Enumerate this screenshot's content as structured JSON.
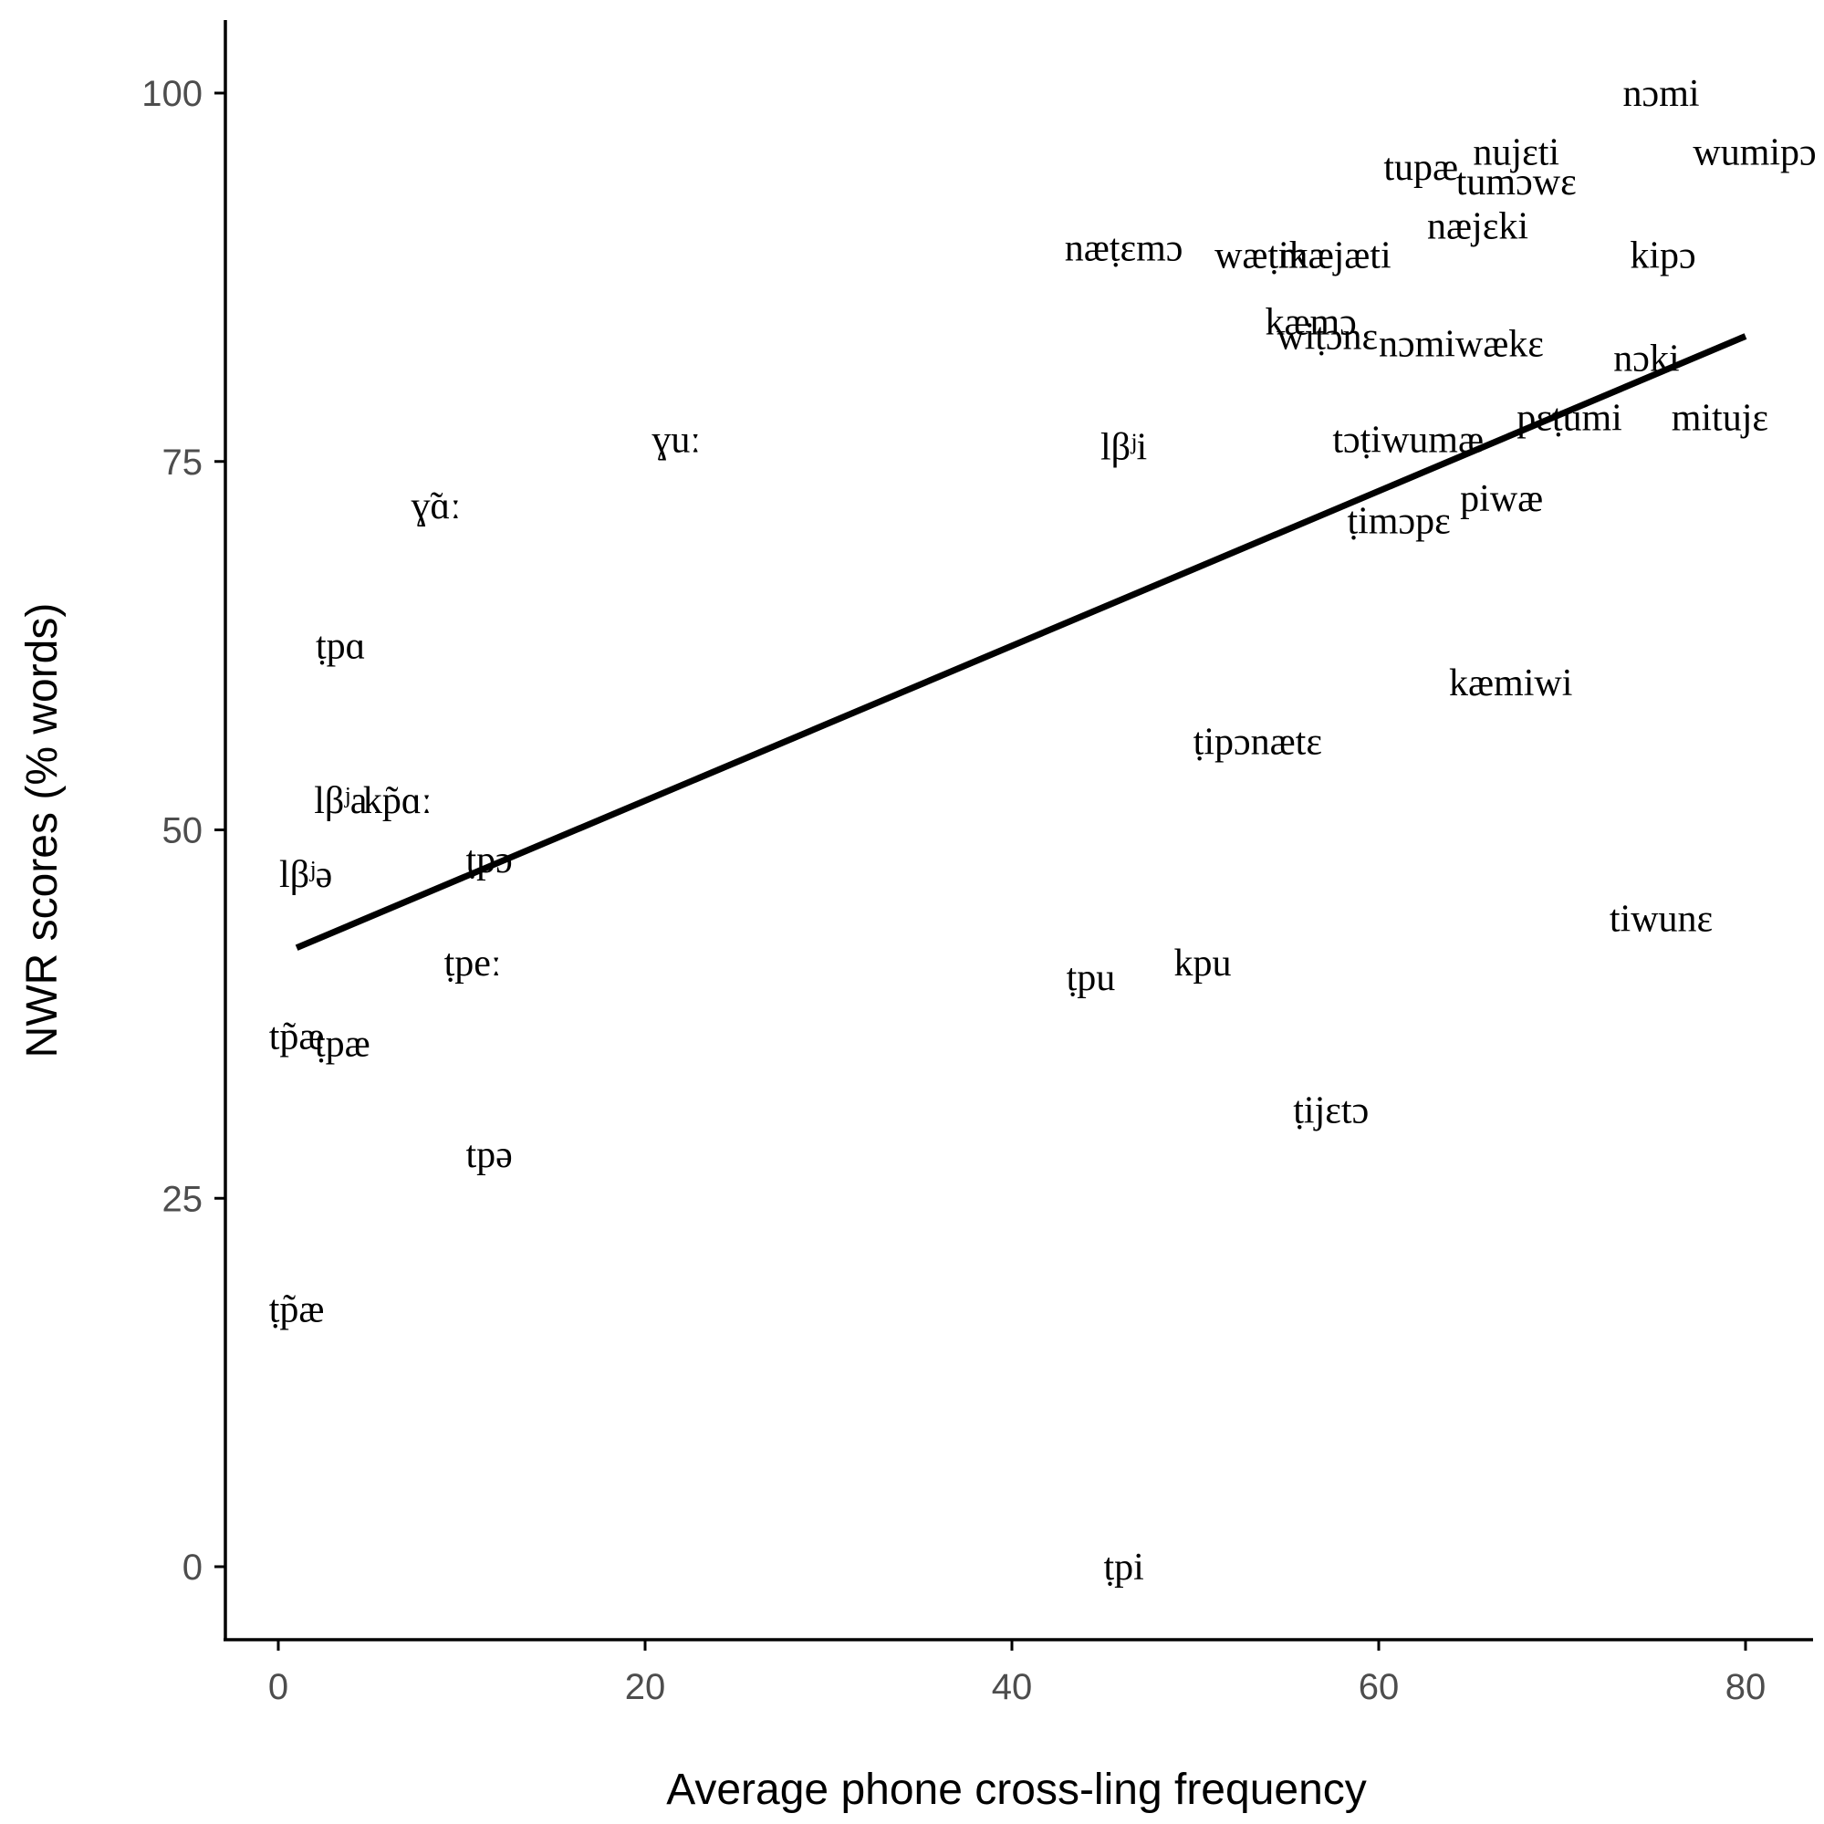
{
  "chart_data": {
    "type": "scatter",
    "title": "",
    "xlabel": "Average phone cross-ling frequency",
    "ylabel": "NWR scores (% words)",
    "xlim": [
      -3,
      84.5
    ],
    "ylim": [
      -5,
      105
    ],
    "x_ticks": [
      0,
      20,
      40,
      60,
      80
    ],
    "y_ticks": [
      0,
      25,
      50,
      75,
      100
    ],
    "grid": false,
    "legend": "none",
    "points": [
      {
        "label": "nɔmi",
        "x": 75.4,
        "y": 100
      },
      {
        "label": "wumipɔ",
        "x": 80.5,
        "y": 96
      },
      {
        "label": "nujɛti",
        "x": 67.5,
        "y": 96
      },
      {
        "label": "tupæ",
        "x": 62.3,
        "y": 95
      },
      {
        "label": "tumɔwɛ",
        "x": 67.5,
        "y": 94
      },
      {
        "label": "næjɛki",
        "x": 65.4,
        "y": 91
      },
      {
        "label": "kipɔ",
        "x": 75.5,
        "y": 89
      },
      {
        "label": "næṭɛmɔ",
        "x": 46.1,
        "y": 89.5
      },
      {
        "label": "wæṭikæ",
        "x": 54.3,
        "y": 89
      },
      {
        "label": "mæjæti",
        "x": 57.6,
        "y": 89
      },
      {
        "label": "kæmɔ",
        "x": 56.3,
        "y": 84.5
      },
      {
        "label": "wiṭɔnɛ",
        "x": 57.2,
        "y": 83.5
      },
      {
        "label": "nɔmiwækɛ",
        "x": 64.5,
        "y": 83
      },
      {
        "label": "nɔki",
        "x": 74.6,
        "y": 82
      },
      {
        "label": "pɛṭumi",
        "x": 70.4,
        "y": 78
      },
      {
        "label": "mitujɛ",
        "x": 78.6,
        "y": 78
      },
      {
        "label": "ɣuː",
        "x": 21.7,
        "y": 76.5
      },
      {
        "label": "lβʲi",
        "x": 46.1,
        "y": 76
      },
      {
        "label": "tɔṭiwumæ",
        "x": 61.6,
        "y": 76.5
      },
      {
        "label": "piwæ",
        "x": 66.7,
        "y": 72.5
      },
      {
        "label": "ṭimɔpɛ",
        "x": 61.1,
        "y": 71
      },
      {
        "label": "ɣ̃ɑː",
        "x": 8.6,
        "y": 72
      },
      {
        "label": "ṭpɑ",
        "x": 3.4,
        "y": 62.5
      },
      {
        "label": "kæmiwi",
        "x": 67.2,
        "y": 60
      },
      {
        "label": "ṭipɔnætɛ",
        "x": 53.4,
        "y": 56
      },
      {
        "label": "lβʲa",
        "x": 3.4,
        "y": 52
      },
      {
        "label": "kp̃ɑː",
        "x": 6.5,
        "y": 52
      },
      {
        "label": "ṭpɔ",
        "x": 11.5,
        "y": 48
      },
      {
        "label": "lβʲə",
        "x": 1.5,
        "y": 47
      },
      {
        "label": "tiwunɛ",
        "x": 75.4,
        "y": 44
      },
      {
        "label": "ṭpeː",
        "x": 10.6,
        "y": 41
      },
      {
        "label": "kpu",
        "x": 50.4,
        "y": 41
      },
      {
        "label": "ṭpu",
        "x": 44.3,
        "y": 40
      },
      {
        "label": "tp̃æ",
        "x": 1.0,
        "y": 36
      },
      {
        "label": "ṭpæ",
        "x": 3.5,
        "y": 35.5
      },
      {
        "label": "ṭijɛtɔ",
        "x": 57.4,
        "y": 31
      },
      {
        "label": "tpə",
        "x": 11.5,
        "y": 28
      },
      {
        "label": "ṭp̃æ",
        "x": 1.0,
        "y": 17.5
      },
      {
        "label": "ṭpi",
        "x": 46.1,
        "y": 0
      }
    ],
    "trend_line": {
      "x": [
        1,
        80
      ],
      "y": [
        42,
        83.5
      ]
    }
  }
}
